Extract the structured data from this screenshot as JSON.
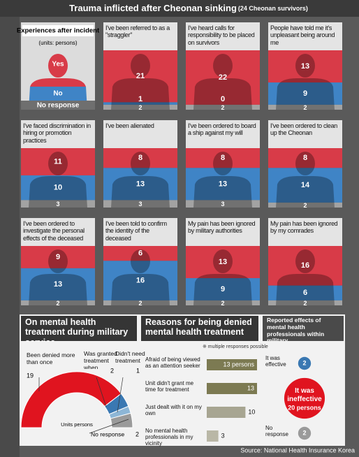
{
  "header": {
    "title": "Trauma inflicted after Cheonan sinking",
    "subtitle": "(24 Cheonan survivors)"
  },
  "legend_panel": {
    "title": "Experiences after incident",
    "units": "(units: persons)",
    "yes": "Yes",
    "no": "No",
    "no_response": "No response"
  },
  "colors": {
    "yes": "#d83b48",
    "no": "#3f84c6",
    "no_response": "#a3a3a3"
  },
  "panels": [
    {
      "title": "I've been referred to as a \"straggler\"",
      "yes": 21,
      "no": 1,
      "no_response": 2
    },
    {
      "title": "I've heard calls for responsibility to be placed on survivors",
      "yes": 22,
      "no": 0,
      "no_response": 2
    },
    {
      "title": "People have told me it's unpleasant being around me",
      "yes": 13,
      "no": 9,
      "no_response": 2
    },
    {
      "title": "I've faced discrimination in hiring or promotion practices",
      "yes": 11,
      "no": 10,
      "no_response": 3
    },
    {
      "title": "I've been alienated",
      "yes": 8,
      "no": 13,
      "no_response": 3
    },
    {
      "title": "I've been ordered to board a ship against my will",
      "yes": 8,
      "no": 13,
      "no_response": 3
    },
    {
      "title": "I've been ordered to clean up the Cheonan",
      "yes": 8,
      "no": 14,
      "no_response": 2
    },
    {
      "title": "I've been ordered to investigate the personal effects of the deceased",
      "yes": 9,
      "no": 13,
      "no_response": 2
    },
    {
      "title": "I've been told to confirm the identity of the deceased",
      "yes": 6,
      "no": 16,
      "no_response": 2
    },
    {
      "title": "My pain has been ignored by military authorities",
      "yes": 13,
      "no": 9,
      "no_response": 2
    },
    {
      "title": "My pain has been ignored by my comrades",
      "yes": 16,
      "no": 6,
      "no_response": 2
    }
  ],
  "treatment": {
    "title": "On mental health treatment during military service",
    "units": "Units persons",
    "segments": [
      {
        "label": "Been denied more than once",
        "value": 19,
        "color": "#e0141f"
      },
      {
        "label": "Was granted treatment when desired",
        "value": 2,
        "color": "#3a78b2"
      },
      {
        "label": "Didn't need treatment",
        "value": 1,
        "color": "#8db6d6"
      },
      {
        "label": "No response",
        "value": 2,
        "color": "#9a9a9a"
      }
    ]
  },
  "reasons": {
    "title": "Reasons for being denied mental health treatment",
    "note": "※ multiple responses possible",
    "labels": [
      "Afraid of being viewed as an attention seeker",
      "Unit didn't grant me time for treatment",
      "Just dealt with it on my own",
      "No mental health professionals in my vicinity"
    ],
    "values": [
      13,
      13,
      10,
      3
    ],
    "value_labels": [
      "13 persons",
      "13",
      "10",
      "3"
    ],
    "colors": [
      "#7c7a52",
      "#7c7a52",
      "#a7a591",
      "#b9b7a6"
    ]
  },
  "effects": {
    "title": "Reported effects of mental health professionals within military",
    "items": [
      {
        "label": "It was effective",
        "value": 2,
        "color": "#3a78b2"
      },
      {
        "label": "It was ineffective",
        "value": 20,
        "value_label": "20 persons",
        "color": "#e0141f"
      },
      {
        "label": "No response",
        "value": 2,
        "color": "#9a9a9a"
      }
    ]
  },
  "source": "Source: National Health Insurance Korea"
}
